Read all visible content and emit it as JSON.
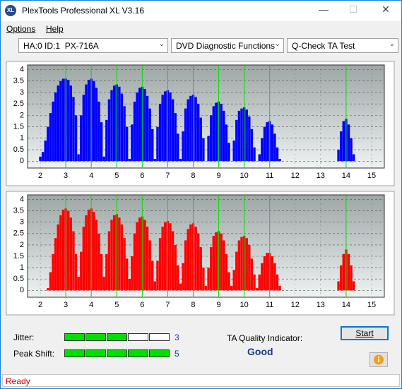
{
  "window": {
    "title": "PlexTools Professional XL V3.16",
    "icon": "XL"
  },
  "menu": [
    "Options",
    "Help"
  ],
  "dropdowns": [
    "HA:0 ID:1  PX-716A",
    "DVD Diagnostic Functions",
    "Q-Check TA Test"
  ],
  "chart_data": [
    {
      "type": "bar",
      "color": "#0000ff",
      "marker_color": "#00e000",
      "grid": true,
      "xlim": [
        1.5,
        15.5
      ],
      "ylim": [
        -0.3,
        4.2
      ],
      "xticks": [
        2,
        3,
        4,
        5,
        6,
        7,
        8,
        9,
        10,
        11,
        12,
        13,
        14,
        15
      ],
      "yticks": [
        0,
        0.5,
        1,
        1.5,
        2,
        2.5,
        3,
        3.5,
        4
      ],
      "markers": [
        3,
        4,
        5,
        6,
        7,
        8,
        9,
        10,
        11,
        14
      ],
      "x": [
        2.0,
        2.1,
        2.2,
        2.3,
        2.4,
        2.5,
        2.6,
        2.7,
        2.8,
        2.9,
        3.0,
        3.1,
        3.2,
        3.3,
        3.4,
        3.5,
        3.6,
        3.7,
        3.8,
        3.9,
        4.0,
        4.1,
        4.2,
        4.3,
        4.4,
        4.5,
        4.6,
        4.7,
        4.8,
        4.9,
        5.0,
        5.1,
        5.2,
        5.3,
        5.4,
        5.5,
        5.6,
        5.7,
        5.8,
        5.9,
        6.0,
        6.1,
        6.2,
        6.3,
        6.4,
        6.5,
        6.6,
        6.7,
        6.8,
        6.9,
        7.0,
        7.1,
        7.2,
        7.3,
        7.4,
        7.5,
        7.6,
        7.7,
        7.8,
        7.9,
        8.0,
        8.1,
        8.2,
        8.3,
        8.4,
        8.5,
        8.6,
        8.7,
        8.8,
        8.9,
        9.0,
        9.1,
        9.2,
        9.3,
        9.4,
        9.5,
        9.6,
        9.7,
        9.8,
        9.9,
        10.0,
        10.1,
        10.2,
        10.3,
        10.4,
        10.5,
        10.6,
        10.7,
        10.8,
        10.9,
        11.0,
        11.1,
        11.2,
        11.3,
        11.4,
        11.5,
        12.0,
        13.0,
        13.6,
        13.7,
        13.8,
        13.9,
        14.0,
        14.1,
        14.2,
        14.3,
        14.4
      ],
      "values": [
        0.2,
        0.4,
        0.9,
        1.5,
        2.1,
        2.6,
        3.0,
        3.3,
        3.5,
        3.6,
        3.6,
        3.55,
        3.3,
        2.8,
        2.0,
        0.3,
        2.0,
        2.9,
        3.35,
        3.55,
        3.6,
        3.5,
        3.2,
        2.6,
        1.7,
        0.2,
        1.8,
        2.7,
        3.1,
        3.3,
        3.35,
        3.25,
        2.95,
        2.4,
        1.5,
        0.1,
        1.6,
        2.6,
        3.0,
        3.2,
        3.25,
        3.15,
        2.85,
        2.3,
        1.4,
        0.1,
        1.5,
        2.5,
        2.9,
        3.05,
        3.1,
        3.0,
        2.7,
        2.1,
        1.2,
        0.1,
        1.3,
        2.3,
        2.7,
        2.85,
        2.9,
        2.8,
        2.5,
        1.9,
        1.0,
        0,
        1.1,
        2.0,
        2.4,
        2.55,
        2.6,
        2.5,
        2.2,
        1.6,
        0.8,
        0,
        0.9,
        1.8,
        2.2,
        2.3,
        2.35,
        2.25,
        1.95,
        1.4,
        0.6,
        0,
        0.3,
        1.0,
        1.5,
        1.7,
        1.75,
        1.6,
        1.2,
        0.6,
        0.1,
        0,
        0,
        0,
        0,
        0.5,
        1.3,
        1.75,
        1.85,
        1.6,
        1.0,
        0.3,
        0
      ]
    },
    {
      "type": "bar",
      "color": "#ff0000",
      "marker_color": "#00e000",
      "grid": true,
      "xlim": [
        1.5,
        15.5
      ],
      "ylim": [
        -0.3,
        4.2
      ],
      "xticks": [
        2,
        3,
        4,
        5,
        6,
        7,
        8,
        9,
        10,
        11,
        12,
        13,
        14,
        15
      ],
      "yticks": [
        0,
        0.5,
        1,
        1.5,
        2,
        2.5,
        3,
        3.5,
        4
      ],
      "markers": [
        3,
        4,
        5,
        6,
        7,
        8,
        9,
        10,
        11,
        14
      ],
      "x": [
        2.3,
        2.4,
        2.5,
        2.6,
        2.7,
        2.8,
        2.9,
        3.0,
        3.1,
        3.2,
        3.3,
        3.4,
        3.5,
        3.6,
        3.7,
        3.8,
        3.9,
        4.0,
        4.1,
        4.2,
        4.3,
        4.4,
        4.5,
        4.6,
        4.7,
        4.8,
        4.9,
        5.0,
        5.1,
        5.2,
        5.3,
        5.4,
        5.5,
        5.6,
        5.7,
        5.8,
        5.9,
        6.0,
        6.1,
        6.2,
        6.3,
        6.4,
        6.5,
        6.6,
        6.7,
        6.8,
        6.9,
        7.0,
        7.1,
        7.2,
        7.3,
        7.4,
        7.5,
        7.6,
        7.7,
        7.8,
        7.9,
        8.0,
        8.1,
        8.2,
        8.3,
        8.4,
        8.5,
        8.6,
        8.7,
        8.8,
        8.9,
        9.0,
        9.1,
        9.2,
        9.3,
        9.4,
        9.5,
        9.6,
        9.7,
        9.8,
        9.9,
        10.0,
        10.1,
        10.2,
        10.3,
        10.4,
        10.5,
        10.6,
        10.7,
        10.8,
        10.9,
        11.0,
        11.1,
        11.2,
        11.3,
        11.4,
        11.5,
        12.0,
        13.0,
        13.6,
        13.7,
        13.8,
        13.9,
        14.0,
        14.1,
        14.2,
        14.3,
        14.4
      ],
      "values": [
        0.1,
        0.8,
        1.6,
        2.3,
        2.9,
        3.3,
        3.55,
        3.6,
        3.5,
        3.2,
        2.6,
        1.6,
        0.6,
        1.7,
        2.8,
        3.3,
        3.55,
        3.6,
        3.45,
        3.1,
        2.5,
        1.6,
        0.6,
        1.6,
        2.6,
        3.1,
        3.3,
        3.35,
        3.2,
        2.9,
        2.3,
        1.4,
        0.5,
        1.5,
        2.5,
        3.0,
        3.2,
        3.25,
        3.1,
        2.8,
        2.2,
        1.3,
        0.4,
        1.3,
        2.3,
        2.8,
        3.0,
        3.05,
        2.95,
        2.6,
        2.0,
        1.1,
        0.3,
        1.2,
        2.2,
        2.7,
        2.9,
        2.95,
        2.8,
        2.5,
        1.9,
        1.0,
        0.2,
        1.0,
        1.9,
        2.4,
        2.55,
        2.6,
        2.5,
        2.2,
        1.6,
        0.8,
        0.2,
        0.9,
        1.7,
        2.2,
        2.35,
        2.4,
        2.3,
        2.0,
        1.4,
        0.7,
        0.1,
        0.7,
        1.2,
        1.5,
        1.65,
        1.65,
        1.5,
        1.2,
        0.7,
        0.2,
        0,
        0,
        0,
        0,
        0.4,
        1.1,
        1.6,
        1.8,
        1.6,
        1.1,
        0.4,
        0
      ]
    }
  ],
  "jitter": {
    "label": "Jitter:",
    "value": 3
  },
  "peak_shift": {
    "label": "Peak Shift:",
    "value": 5
  },
  "ta_quality": {
    "label": "TA Quality Indicator:",
    "value": "Good"
  },
  "start_button": "Start",
  "status": "Ready"
}
